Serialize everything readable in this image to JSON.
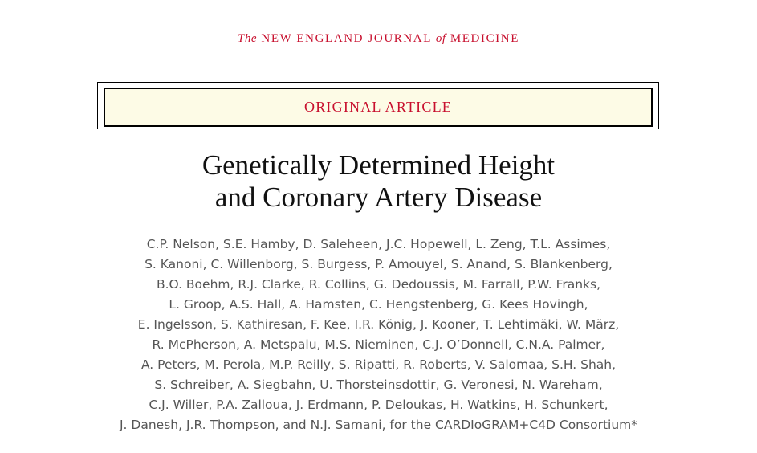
{
  "header": {
    "journal": [
      "The",
      "NEW ENGLAND JOURNAL",
      "of",
      "MEDICINE"
    ]
  },
  "section": "ORIGINAL ARTICLE",
  "title": [
    "Genetically Determined Height",
    "and Coronary Artery Disease"
  ],
  "authors": [
    "C.P. Nelson, S.E. Hamby, D. Saleheen, J.C. Hopewell, L. Zeng, T.L. Assimes,",
    "S. Kanoni, C. Willenborg, S. Burgess, P. Amouyel, S. Anand, S. Blankenberg,",
    "B.O. Boehm, R.J. Clarke, R. Collins, G. Dedoussis, M. Farrall, P.W. Franks,",
    "L. Groop, A.S. Hall, A. Hamsten, C. Hengstenberg, G. Kees Hovingh,",
    "E. Ingelsson, S. Kathiresan, F. Kee, I.R. König, J. Kooner, T. Lehtimäki, W. März,",
    "R. McPherson, A. Metspalu, M.S. Nieminen, C.J. O’Donnell, C.N.A. Palmer,",
    "A. Peters, M. Perola, M.P. Reilly, S. Ripatti, R. Roberts, V. Salomaa, S.H. Shah,",
    "S. Schreiber, A. Siegbahn, U. Thorsteinsdottir, G. Veronesi, N. Wareham,",
    "C.J. Willer, P.A. Zalloua, J. Erdmann, P. Deloukas, H. Watkins, H. Schunkert,",
    "J. Danesh, J.R. Thompson, and N.J. Samani, for the CARDIoGRAM+C4D Consortium*"
  ]
}
